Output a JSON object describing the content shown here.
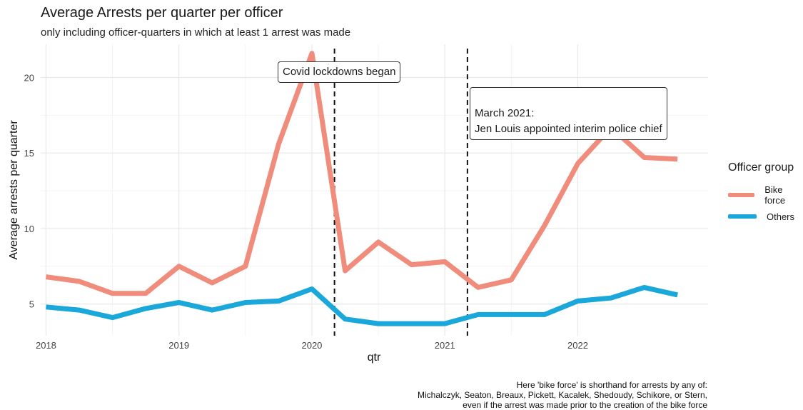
{
  "chart_data": {
    "type": "line",
    "title": "Average Arrests per quarter per officer",
    "subtitle": "only including officer-quarters in which at least 1 arrest was made",
    "xlabel": "qtr",
    "ylabel": "Average arrests per quarter",
    "xlim": [
      2017.96,
      2022.98
    ],
    "ylim": [
      2.9,
      22.2
    ],
    "x_ticks": [
      2018,
      2019,
      2020,
      2021,
      2022
    ],
    "x_tick_labels": [
      "2018",
      "2019",
      "2020",
      "2021",
      "2022"
    ],
    "y_ticks": [
      5,
      10,
      15,
      20
    ],
    "y_tick_labels": [
      "5",
      "10",
      "15",
      "20"
    ],
    "grid": true,
    "legend": {
      "title": "Officer group",
      "placement": "right"
    },
    "x": [
      2018.0,
      2018.25,
      2018.5,
      2018.75,
      2019.0,
      2019.25,
      2019.5,
      2019.75,
      2020.0,
      2020.25,
      2020.5,
      2020.75,
      2021.0,
      2021.25,
      2021.5,
      2021.75,
      2022.0,
      2022.25,
      2022.5,
      2022.75
    ],
    "series": [
      {
        "name": "Bike force",
        "color": "#F08C7C",
        "values": [
          6.8,
          6.5,
          5.7,
          5.7,
          7.5,
          6.4,
          7.5,
          15.6,
          21.6,
          7.2,
          9.1,
          7.6,
          7.8,
          6.1,
          6.6,
          10.2,
          14.3,
          16.7,
          14.7,
          14.6
        ]
      },
      {
        "name": "Others",
        "color": "#1AA7D9",
        "values": [
          4.8,
          4.6,
          4.1,
          4.7,
          5.1,
          4.6,
          5.1,
          5.2,
          6.0,
          4.0,
          3.7,
          3.7,
          3.7,
          4.3,
          4.3,
          4.3,
          5.2,
          5.4,
          6.1,
          5.6
        ]
      }
    ],
    "vlines": [
      2020.17,
      2021.17
    ],
    "annotations": [
      {
        "text": "Covid lockdowns began"
      },
      {
        "text": "March 2021:\nJen Louis appointed interim police chief"
      }
    ],
    "caption": "Here 'bike force' is shorthand for arrests by any of:\nMichalczyk, Seaton, Breaux, Pickett, Kacalek, Shedoudy, Schikore, or Stern,\neven if the arrest was made prior to the creation of the bike force"
  }
}
